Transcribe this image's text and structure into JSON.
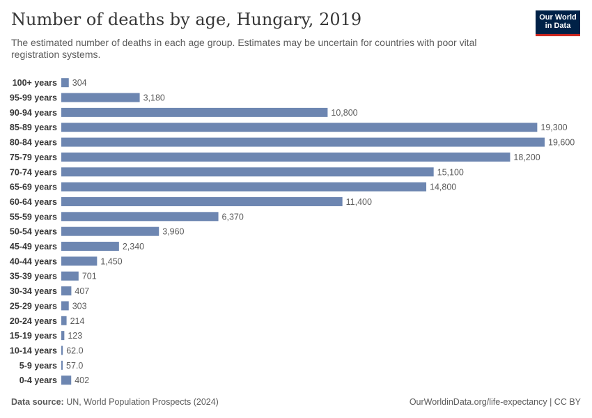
{
  "header": {
    "title": "Number of deaths by age, Hungary, 2019",
    "subtitle": "The estimated number of deaths in each age group. Estimates may be uncertain for countries with poor vital registration systems.",
    "logo_line1": "Our World",
    "logo_line2": "in Data"
  },
  "footer": {
    "source_label": "Data source:",
    "source_text": "UN, World Population Prospects (2024)",
    "link": "OurWorldinData.org/life-expectancy | CC BY"
  },
  "colors": {
    "bar": "#6d86b1",
    "label": "#373737",
    "value": "#5b5b5b",
    "logo_bg": "#002147",
    "logo_accent": "#ce261e"
  },
  "chart_data": {
    "type": "bar",
    "orientation": "horizontal",
    "title": "Number of deaths by age, Hungary, 2019",
    "xlim": [
      0,
      19600
    ],
    "grid": false,
    "categories": [
      "100+ years",
      "95-99 years",
      "90-94 years",
      "85-89 years",
      "80-84 years",
      "75-79 years",
      "70-74 years",
      "65-69 years",
      "60-64 years",
      "55-59 years",
      "50-54 years",
      "45-49 years",
      "40-44 years",
      "35-39 years",
      "30-34 years",
      "25-29 years",
      "20-24 years",
      "15-19 years",
      "10-14 years",
      "5-9 years",
      "0-4 years"
    ],
    "values": [
      304,
      3180,
      10800,
      19300,
      19600,
      18200,
      15100,
      14800,
      11400,
      6370,
      3960,
      2340,
      1450,
      701,
      407,
      303,
      214,
      123,
      62.0,
      57.0,
      402
    ],
    "value_labels": [
      "304",
      "3,180",
      "10,800",
      "19,300",
      "19,600",
      "18,200",
      "15,100",
      "14,800",
      "11,400",
      "6,370",
      "3,960",
      "2,340",
      "1,450",
      "701",
      "407",
      "303",
      "214",
      "123",
      "62.0",
      "57.0",
      "402"
    ]
  }
}
